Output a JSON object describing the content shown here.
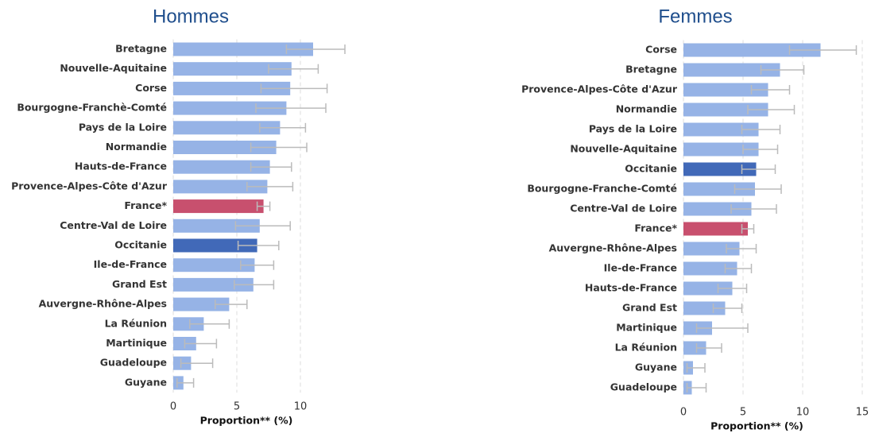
{
  "chart_data": [
    {
      "type": "bar",
      "title": "Hommes",
      "x_label": "Proportion** (%)",
      "categories": [
        "Bretagne",
        "Nouvelle-Aquitaine",
        "Corse",
        "Bourgogne-Franchè-Comté",
        "Pays de la Loire",
        "Normandie",
        "Hauts-de-France",
        "Provence-Alpes-Côte d'Azur",
        "France*",
        "Centre-Val de Loire",
        "Occitanie",
        "Ile-de-France",
        "Grand Est",
        "Auvergne-Rhône-Alpes",
        "La Réunion",
        "Martinique",
        "Guadeloupe",
        "Guyane"
      ],
      "values": [
        11.0,
        9.3,
        9.2,
        8.9,
        8.4,
        8.1,
        7.6,
        7.4,
        7.1,
        6.8,
        6.6,
        6.4,
        6.3,
        4.4,
        2.4,
        1.8,
        1.4,
        0.8
      ],
      "ci_low": [
        8.9,
        7.5,
        6.9,
        6.5,
        6.8,
        6.1,
        6.1,
        5.8,
        6.6,
        4.9,
        5.1,
        5.3,
        4.8,
        3.3,
        1.3,
        0.9,
        0.6,
        0.3
      ],
      "ci_high": [
        13.5,
        11.4,
        12.1,
        12.0,
        10.4,
        10.5,
        9.3,
        9.4,
        7.6,
        9.2,
        8.3,
        7.9,
        7.9,
        5.8,
        4.4,
        3.4,
        3.1,
        1.6
      ],
      "colors": [
        "#96b3e6",
        "#96b3e6",
        "#96b3e6",
        "#96b3e6",
        "#96b3e6",
        "#96b3e6",
        "#96b3e6",
        "#96b3e6",
        "#c8506e",
        "#96b3e6",
        "#4169b8",
        "#96b3e6",
        "#96b3e6",
        "#96b3e6",
        "#96b3e6",
        "#96b3e6",
        "#96b3e6",
        "#96b3e6"
      ],
      "xlim": [
        0,
        14
      ],
      "xticks": [
        0,
        5,
        10
      ],
      "grid": true
    },
    {
      "type": "bar",
      "title": "Femmes",
      "x_label": "Proportion** (%)",
      "categories": [
        "Corse",
        "Bretagne",
        "Provence-Alpes-Côte d'Azur",
        "Normandie",
        "Pays de la Loire",
        "Nouvelle-Aquitaine",
        "Occitanie",
        "Bourgogne-Franche-Comté",
        "Centre-Val de Loire",
        "France*",
        "Auvergne-Rhône-Alpes",
        "Ile-de-France",
        "Hauts-de-France",
        "Grand Est",
        "Martinique",
        "La Réunion",
        "Guyane",
        "Guadeloupe"
      ],
      "values": [
        11.5,
        8.1,
        7.1,
        7.1,
        6.3,
        6.3,
        6.1,
        6.0,
        5.7,
        5.4,
        4.7,
        4.5,
        4.1,
        3.5,
        2.4,
        1.9,
        0.8,
        0.7
      ],
      "ci_low": [
        8.9,
        6.5,
        5.7,
        5.4,
        4.9,
        5.0,
        4.9,
        4.3,
        4.0,
        4.9,
        3.6,
        3.5,
        2.9,
        2.5,
        1.1,
        1.1,
        0.3,
        0.3
      ],
      "ci_high": [
        14.5,
        10.1,
        8.9,
        9.3,
        8.1,
        7.9,
        7.7,
        8.2,
        7.8,
        5.9,
        6.1,
        5.7,
        5.3,
        4.9,
        5.4,
        3.2,
        1.8,
        1.9
      ],
      "colors": [
        "#96b3e6",
        "#96b3e6",
        "#96b3e6",
        "#96b3e6",
        "#96b3e6",
        "#96b3e6",
        "#4169b8",
        "#96b3e6",
        "#96b3e6",
        "#c8506e",
        "#96b3e6",
        "#96b3e6",
        "#96b3e6",
        "#96b3e6",
        "#96b3e6",
        "#96b3e6",
        "#96b3e6",
        "#96b3e6"
      ],
      "xlim": [
        0,
        15
      ],
      "xticks": [
        0,
        5,
        10,
        15
      ],
      "grid": true
    }
  ]
}
